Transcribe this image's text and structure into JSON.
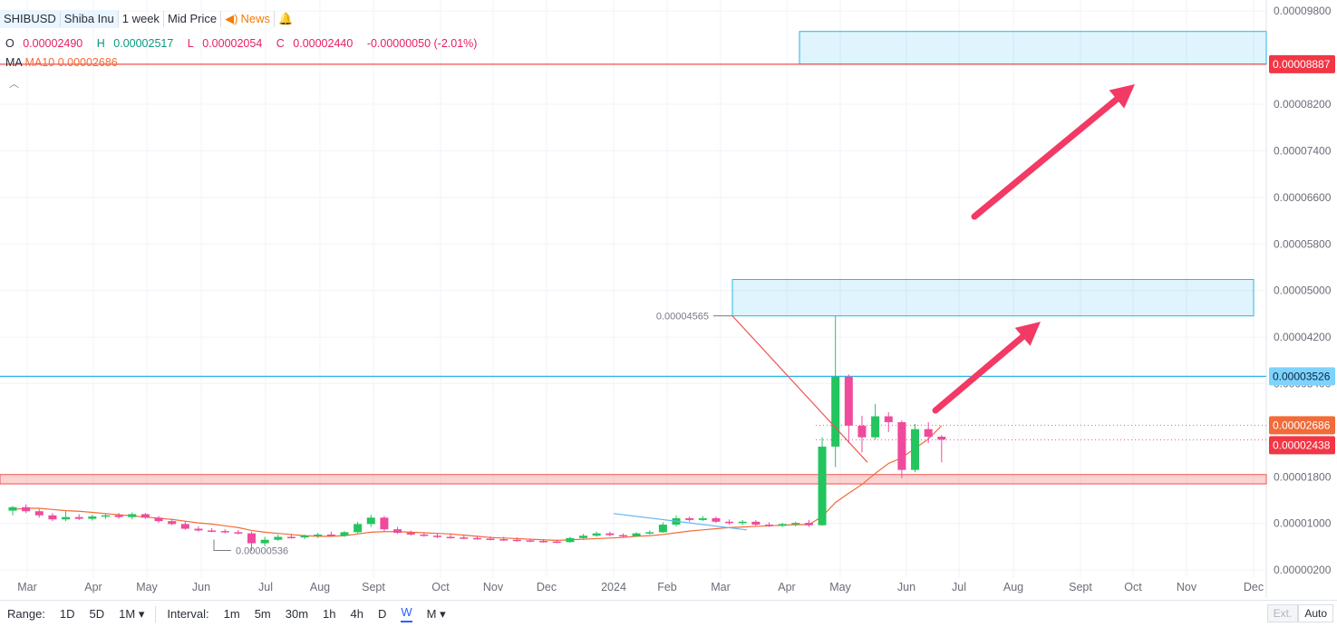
{
  "header": {
    "symbol": "SHIBUSD",
    "name": "Shiba Inu",
    "interval": "1 week",
    "price_type": "Mid Price",
    "news": "News"
  },
  "ohlc": {
    "o_label": "O",
    "o": "0.00002490",
    "h_label": "H",
    "h": "0.00002517",
    "l_label": "L",
    "l": "0.00002054",
    "c_label": "C",
    "c": "0.00002440",
    "change": "-0.00000050 (-2.01%)"
  },
  "ma": {
    "label": "MA",
    "name": "MA10",
    "value": "0.00002686"
  },
  "bottom": {
    "range_label": "Range:",
    "ranges": [
      "1D",
      "5D",
      "1M ▾"
    ],
    "interval_label": "Interval:",
    "intervals": [
      "1m",
      "5m",
      "30m",
      "1h",
      "4h",
      "D",
      "W",
      "M ▾"
    ],
    "active_interval": "W",
    "ext": "Ext.",
    "auto": "Auto"
  },
  "colors": {
    "up": "#22c55e",
    "down": "#ef4a9c",
    "ma": "#f26b38",
    "zone_blue": "#29b6e8",
    "zone_red": "#ef5350",
    "arrow": "#f23a64"
  },
  "chart_data": {
    "type": "candlestick",
    "timeframe": "weekly",
    "y_ticks": [
      2e-06,
      1e-05,
      1.8e-05,
      3.4e-05,
      4.2e-05,
      5e-05,
      5.8e-05,
      6.6e-05,
      7.4e-05,
      8.2e-05,
      9.8e-05
    ],
    "y_tick_labels": [
      "0.00000200",
      "0.00001000",
      "0.00001800",
      "0.00003400",
      "0.00004200",
      "0.00005000",
      "0.00005800",
      "0.00006600",
      "0.00007400",
      "0.00008200",
      "0.00009800"
    ],
    "x_labels": [
      "Mar",
      "Apr",
      "May",
      "Jun",
      "Jul",
      "Aug",
      "Sept",
      "Oct",
      "Nov",
      "Dec",
      "2024",
      "Feb",
      "Mar",
      "Apr",
      "May",
      "Jun",
      "Jul",
      "Aug",
      "Sept",
      "Oct",
      "Nov",
      "Dec"
    ],
    "price_labels": [
      {
        "text": "0.00008887",
        "value": 8.887e-05,
        "kind": "red-line"
      },
      {
        "text": "0.00003526",
        "value": 3.526e-05,
        "kind": "blue-line"
      },
      {
        "text": "0.00002686",
        "value": 2.686e-05,
        "kind": "ma"
      },
      {
        "text": "0.00002438",
        "value": 2.438e-05,
        "kind": "last"
      }
    ],
    "annotations": [
      {
        "text": "0.00004565",
        "value": 4.565e-05,
        "kind": "high"
      },
      {
        "text": "0.00000536",
        "value": 5.36e-06,
        "kind": "low"
      }
    ],
    "zones": [
      {
        "kind": "blue",
        "low": 8.89e-05,
        "high": 9.45e-05
      },
      {
        "kind": "blue",
        "low": 4.565e-05,
        "high": 5.19e-05
      },
      {
        "kind": "red",
        "low": 1.68e-05,
        "high": 1.84e-05
      }
    ],
    "candles": [
      [
        1.22e-05,
        1.3e-05,
        1.14e-05,
        1.28e-05
      ],
      [
        1.28e-05,
        1.33e-05,
        1.18e-05,
        1.21e-05
      ],
      [
        1.21e-05,
        1.25e-05,
        1.1e-05,
        1.14e-05
      ],
      [
        1.14e-05,
        1.18e-05,
        1.04e-05,
        1.07e-05
      ],
      [
        1.07e-05,
        1.21e-05,
        1.04e-05,
        1.11e-05
      ],
      [
        1.11e-05,
        1.16e-05,
        1.06e-05,
        1.08e-05
      ],
      [
        1.08e-05,
        1.15e-05,
        1.05e-05,
        1.12e-05
      ],
      [
        1.12e-05,
        1.17e-05,
        1.08e-05,
        1.14e-05
      ],
      [
        1.14e-05,
        1.18e-05,
        1.08e-05,
        1.11e-05
      ],
      [
        1.11e-05,
        1.19e-05,
        1.07e-05,
        1.16e-05
      ],
      [
        1.16e-05,
        1.18e-05,
        1.08e-05,
        1.1e-05
      ],
      [
        1.1e-05,
        1.13e-05,
        1.01e-05,
        1.04e-05
      ],
      [
        1.04e-05,
        1.08e-05,
        9.7e-06,
        9.9e-06
      ],
      [
        9.9e-06,
        1.04e-05,
        8.9e-06,
        9.1e-06
      ],
      [
        9.1e-06,
        9.5e-06,
        8.6e-06,
        8.8e-06
      ],
      [
        8.8e-06,
        9.2e-06,
        8.5e-06,
        8.7e-06
      ],
      [
        8.7e-06,
        9e-06,
        8.3e-06,
        8.5e-06
      ],
      [
        8.5e-06,
        8.9e-06,
        8.1e-06,
        8.3e-06
      ],
      [
        8.3e-06,
        8.6e-06,
        5.3e-06,
        6.6e-06
      ],
      [
        6.6e-06,
        7.7e-06,
        6.1e-06,
        7.2e-06
      ],
      [
        7.2e-06,
        8.1e-06,
        7e-06,
        7.7e-06
      ],
      [
        7.7e-06,
        8.2e-06,
        7.4e-06,
        7.6e-06
      ],
      [
        7.6e-06,
        8.1e-06,
        7.3e-06,
        7.9e-06
      ],
      [
        7.9e-06,
        8.4e-06,
        7.5e-06,
        8.1e-06
      ],
      [
        8.1e-06,
        8.6e-06,
        7.7e-06,
        7.9e-06
      ],
      [
        7.9e-06,
        8.7e-06,
        7.7e-06,
        8.5e-06
      ],
      [
        8.5e-06,
        1.03e-05,
        8.3e-06,
        9.9e-06
      ],
      [
        9.9e-06,
        1.15e-05,
        9.4e-06,
        1.1e-05
      ],
      [
        1.1e-05,
        1.13e-05,
        8.7e-06,
        9e-06
      ],
      [
        9e-06,
        9.4e-06,
        8.2e-06,
        8.4e-06
      ],
      [
        8.4e-06,
        8.8e-06,
        7.9e-06,
        8.1e-06
      ],
      [
        8.1e-06,
        8.5e-06,
        7.7e-06,
        7.9e-06
      ],
      [
        7.9e-06,
        8.3e-06,
        7.5e-06,
        7.7e-06
      ],
      [
        7.7e-06,
        8.2e-06,
        7.4e-06,
        7.6e-06
      ],
      [
        7.6e-06,
        8e-06,
        7.3e-06,
        7.5e-06
      ],
      [
        7.5e-06,
        7.9e-06,
        7.2e-06,
        7.4e-06
      ],
      [
        7.4e-06,
        7.8e-06,
        7.1e-06,
        7.3e-06
      ],
      [
        7.3e-06,
        7.7e-06,
        7e-06,
        7.2e-06
      ],
      [
        7.2e-06,
        7.6e-06,
        6.9e-06,
        7.1e-06
      ],
      [
        7.1e-06,
        7.4e-06,
        6.8e-06,
        7e-06
      ],
      [
        7e-06,
        7.3e-06,
        6.7e-06,
        6.9e-06
      ],
      [
        6.9e-06,
        7.2e-06,
        6.6e-06,
        6.8e-06
      ],
      [
        6.8e-06,
        7.7e-06,
        6.7e-06,
        7.5e-06
      ],
      [
        7.5e-06,
        8.2e-06,
        7.4e-06,
        7.9e-06
      ],
      [
        7.9e-06,
        8.6e-06,
        7.7e-06,
        8.3e-06
      ],
      [
        8.3e-06,
        8.6e-06,
        7.8e-06,
        8e-06
      ],
      [
        8e-06,
        8.3e-06,
        7.6e-06,
        7.8e-06
      ],
      [
        7.8e-06,
        8.5e-06,
        7.7e-06,
        8.3e-06
      ],
      [
        8.3e-06,
        8.8e-06,
        8.1e-06,
        8.5e-06
      ],
      [
        8.5e-06,
        1.02e-05,
        8.4e-06,
        9.8e-06
      ],
      [
        9.8e-06,
        1.14e-05,
        9.5e-06,
        1.09e-05
      ],
      [
        1.09e-05,
        1.12e-05,
        1.03e-05,
        1.06e-05
      ],
      [
        1.06e-05,
        1.13e-05,
        1.04e-05,
        1.09e-05
      ],
      [
        1.09e-05,
        1.12e-05,
        1.01e-05,
        1.03e-05
      ],
      [
        1.03e-05,
        1.07e-05,
        9.8e-06,
        1.01e-05
      ],
      [
        1.01e-05,
        1.06e-05,
        9.7e-06,
        1.03e-05
      ],
      [
        1.03e-05,
        1.06e-05,
        9.6e-06,
        9.8e-06
      ],
      [
        9.8e-06,
        1.02e-05,
        9.4e-06,
        9.6e-06
      ],
      [
        9.6e-06,
        1.01e-05,
        9.4e-06,
        9.9e-06
      ],
      [
        9.9e-06,
        1.03e-05,
        9.5e-06,
        1.01e-05
      ],
      [
        1.01e-05,
        1.06e-05,
        9.4e-06,
        9.7e-06
      ],
      [
        9.7e-06,
        2.48e-05,
        9.6e-06,
        2.32e-05
      ],
      [
        2.32e-05,
        4.57e-05,
        1.97e-05,
        3.52e-05
      ],
      [
        3.52e-05,
        3.56e-05,
        2.38e-05,
        2.68e-05
      ],
      [
        2.68e-05,
        2.85e-05,
        2.22e-05,
        2.48e-05
      ],
      [
        2.48e-05,
        3.05e-05,
        2.44e-05,
        2.84e-05
      ],
      [
        2.84e-05,
        2.91e-05,
        2.57e-05,
        2.74e-05
      ],
      [
        2.74e-05,
        2.77e-05,
        1.78e-05,
        1.92e-05
      ],
      [
        1.92e-05,
        2.71e-05,
        1.88e-05,
        2.62e-05
      ],
      [
        2.62e-05,
        2.74e-05,
        2.38e-05,
        2.49e-05
      ],
      [
        2.49e-05,
        2.52e-05,
        2.05e-05,
        2.44e-05
      ]
    ],
    "ma10": [
      1.24e-05,
      1.26e-05,
      1.26e-05,
      1.24e-05,
      1.22e-05,
      1.21e-05,
      1.19e-05,
      1.17e-05,
      1.15e-05,
      1.13e-05,
      1.11e-05,
      1.09e-05,
      1.07e-05,
      1.04e-05,
      1.01e-05,
      9.9e-06,
      9.6e-06,
      9.3e-06,
      8.8e-06,
      8.5e-06,
      8.3e-06,
      8.1e-06,
      7.9e-06,
      7.8e-06,
      7.8e-06,
      7.9e-06,
      8.2e-06,
      8.5e-06,
      8.6e-06,
      8.6e-06,
      8.5e-06,
      8.4e-06,
      8.3e-06,
      8.2e-06,
      8e-06,
      7.8e-06,
      7.6e-06,
      7.5e-06,
      7.4e-06,
      7.3e-06,
      7.2e-06,
      7.1e-06,
      7.2e-06,
      7.3e-06,
      7.4e-06,
      7.5e-06,
      7.6e-06,
      7.8e-06,
      7.9e-06,
      8.1e-06,
      8.4e-06,
      8.7e-06,
      8.9e-06,
      9.1e-06,
      9.3e-06,
      9.4e-06,
      9.5e-06,
      9.6e-06,
      9.7e-06,
      9.8e-06,
      9.8e-06,
      1.12e-05,
      1.36e-05,
      1.52e-05,
      1.67e-05,
      1.86e-05,
      2.03e-05,
      2.13e-05,
      2.29e-05,
      2.45e-05,
      2.68e-05
    ],
    "trendlines": [
      {
        "kind": "descending-red",
        "from": [
          4.565e-05
        ],
        "to": [
          2.05e-05
        ]
      },
      {
        "kind": "descending-blue",
        "from": [
          1.17e-05
        ],
        "to": [
          8.9e-06
        ]
      }
    ],
    "ylim": [
      -2.8e-06,
      9.99e-05
    ],
    "grid": true,
    "legend": "top-left"
  }
}
